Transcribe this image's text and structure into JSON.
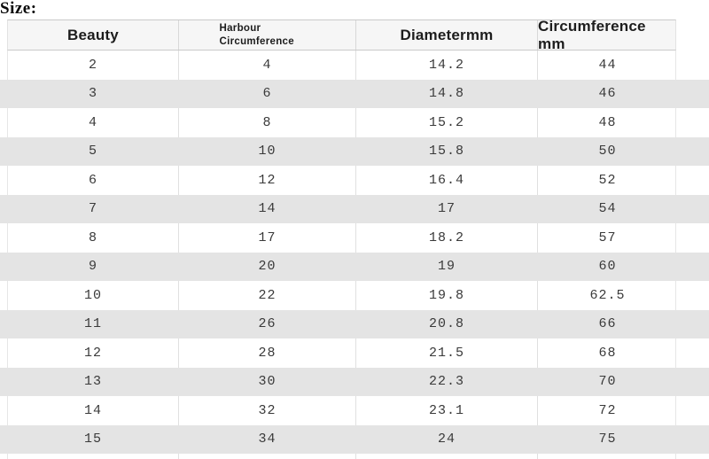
{
  "title": "Size:",
  "table": {
    "headers": [
      "Beauty",
      "Harbour Circumference",
      "Diametermm",
      "Circumference mm"
    ],
    "column_keys": [
      "beauty",
      "harbour",
      "diameter",
      "circumference"
    ],
    "rows": [
      {
        "beauty": "2",
        "harbour": "4",
        "diameter": "14.2",
        "circumference": "44"
      },
      {
        "beauty": "3",
        "harbour": "6",
        "diameter": "14.8",
        "circumference": "46"
      },
      {
        "beauty": "4",
        "harbour": "8",
        "diameter": "15.2",
        "circumference": "48"
      },
      {
        "beauty": "5",
        "harbour": "10",
        "diameter": "15.8",
        "circumference": "50"
      },
      {
        "beauty": "6",
        "harbour": "12",
        "diameter": "16.4",
        "circumference": "52"
      },
      {
        "beauty": "7",
        "harbour": "14",
        "diameter": "17",
        "circumference": "54"
      },
      {
        "beauty": "8",
        "harbour": "17",
        "diameter": "18.2",
        "circumference": "57"
      },
      {
        "beauty": "9",
        "harbour": "20",
        "diameter": "19",
        "circumference": "60"
      },
      {
        "beauty": "10",
        "harbour": "22",
        "diameter": "19.8",
        "circumference": "62.5"
      },
      {
        "beauty": "11",
        "harbour": "26",
        "diameter": "20.8",
        "circumference": "66"
      },
      {
        "beauty": "12",
        "harbour": "28",
        "diameter": "21.5",
        "circumference": "68"
      },
      {
        "beauty": "13",
        "harbour": "30",
        "diameter": "22.3",
        "circumference": "70"
      },
      {
        "beauty": "14",
        "harbour": "32",
        "diameter": "23.1",
        "circumference": "72"
      },
      {
        "beauty": "15",
        "harbour": "34",
        "diameter": "24",
        "circumference": "75"
      }
    ]
  },
  "colors": {
    "stripe_gray": "#e4e4e4",
    "header_bg": "#f6f6f6",
    "border": "#c9c9c9",
    "text": "#3a3a3a"
  }
}
